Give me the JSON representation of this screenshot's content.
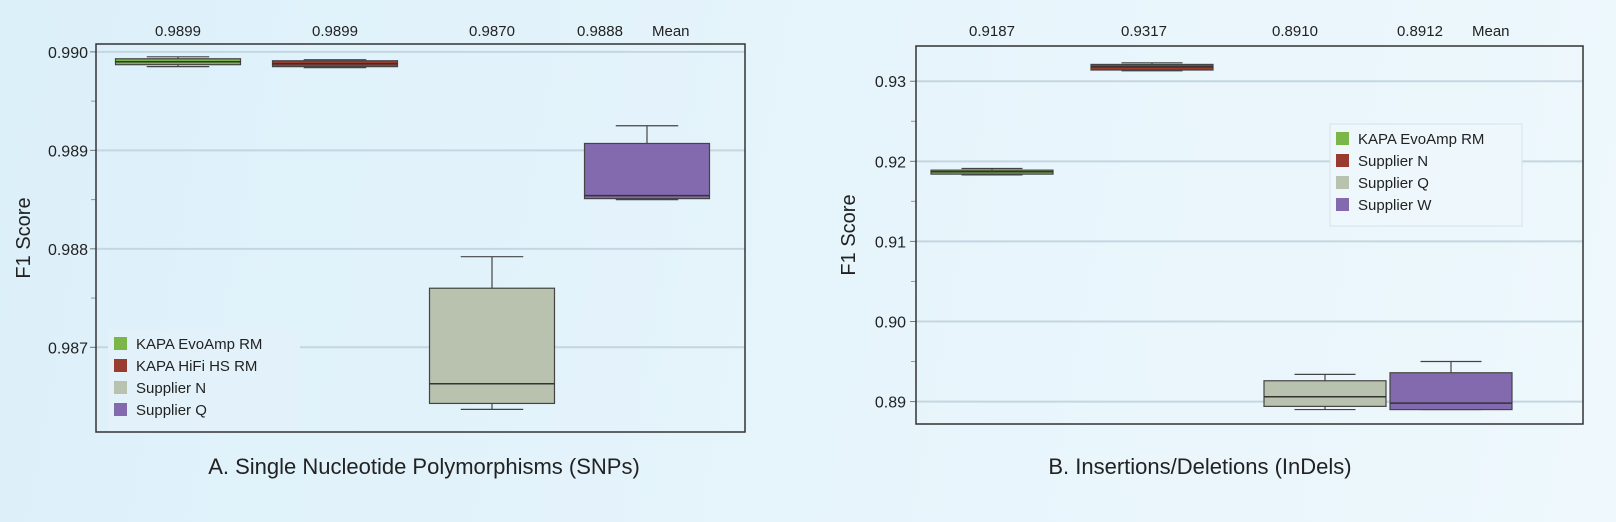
{
  "chart_data": [
    {
      "type": "box",
      "title": "A. Single Nucleotide Polymorphisms (SNPs)",
      "ylabel": "F1 Score",
      "ylim": [
        0.98614,
        0.99008
      ],
      "yticks": [
        0.99,
        0.989,
        0.988,
        0.987
      ],
      "ytick_labels": [
        "0.990",
        "0.989",
        "0.988",
        "0.987"
      ],
      "grid": true,
      "legend_position": "bottom-left",
      "mean_suffix": "Mean",
      "series": [
        {
          "name": "KAPA EvoAmp RM",
          "color": "#7ab648",
          "mean_label": "0.9899",
          "whisker_low": 0.98985,
          "q1": 0.98987,
          "median": 0.9899,
          "q3": 0.98993,
          "whisker_high": 0.98995
        },
        {
          "name": "KAPA HiFi HS RM",
          "color": "#9a3b30",
          "mean_label": "0.9899",
          "whisker_low": 0.98984,
          "q1": 0.98985,
          "median": 0.98988,
          "q3": 0.98991,
          "whisker_high": 0.98992
        },
        {
          "name": "Supplier N",
          "color": "#b8c2ae",
          "mean_label": "0.9870",
          "whisker_low": 0.98637,
          "q1": 0.98643,
          "median": 0.98663,
          "q3": 0.9876,
          "whisker_high": 0.98792
        },
        {
          "name": "Supplier Q",
          "color": "#836aae",
          "mean_label": "0.9888",
          "whisker_low": 0.9885,
          "q1": 0.98851,
          "median": 0.98854,
          "q3": 0.98907,
          "whisker_high": 0.98925
        }
      ]
    },
    {
      "type": "box",
      "title": "B. Insertions/Deletions (InDels)",
      "ylabel": "F1 Score",
      "ylim": [
        0.8872,
        0.9344
      ],
      "yticks": [
        0.93,
        0.92,
        0.91,
        0.9,
        0.89
      ],
      "ytick_labels": [
        "0.93",
        "0.92",
        "0.91",
        "0.90",
        "0.89"
      ],
      "grid": true,
      "legend_position": "top-right",
      "mean_suffix": "Mean",
      "series": [
        {
          "name": "KAPA EvoAmp RM",
          "color": "#7ab648",
          "mean_label": "0.9187",
          "whisker_low": 0.9183,
          "q1": 0.9185,
          "median": 0.9187,
          "q3": 0.9189,
          "whisker_high": 0.9191
        },
        {
          "name": "Supplier N",
          "color": "#9a3b30",
          "mean_label": "0.9317",
          "whisker_low": 0.9313,
          "q1": 0.9314,
          "median": 0.9318,
          "q3": 0.9321,
          "whisker_high": 0.9323
        },
        {
          "name": "Supplier Q",
          "color": "#b8c2ae",
          "mean_label": "0.8910",
          "whisker_low": 0.889,
          "q1": 0.8894,
          "median": 0.8906,
          "q3": 0.8926,
          "whisker_high": 0.8934
        },
        {
          "name": "Supplier W",
          "color": "#836aae",
          "mean_label": "0.8912",
          "whisker_low": 0.889,
          "q1": 0.889,
          "median": 0.8898,
          "q3": 0.8936,
          "whisker_high": 0.895
        }
      ]
    }
  ]
}
